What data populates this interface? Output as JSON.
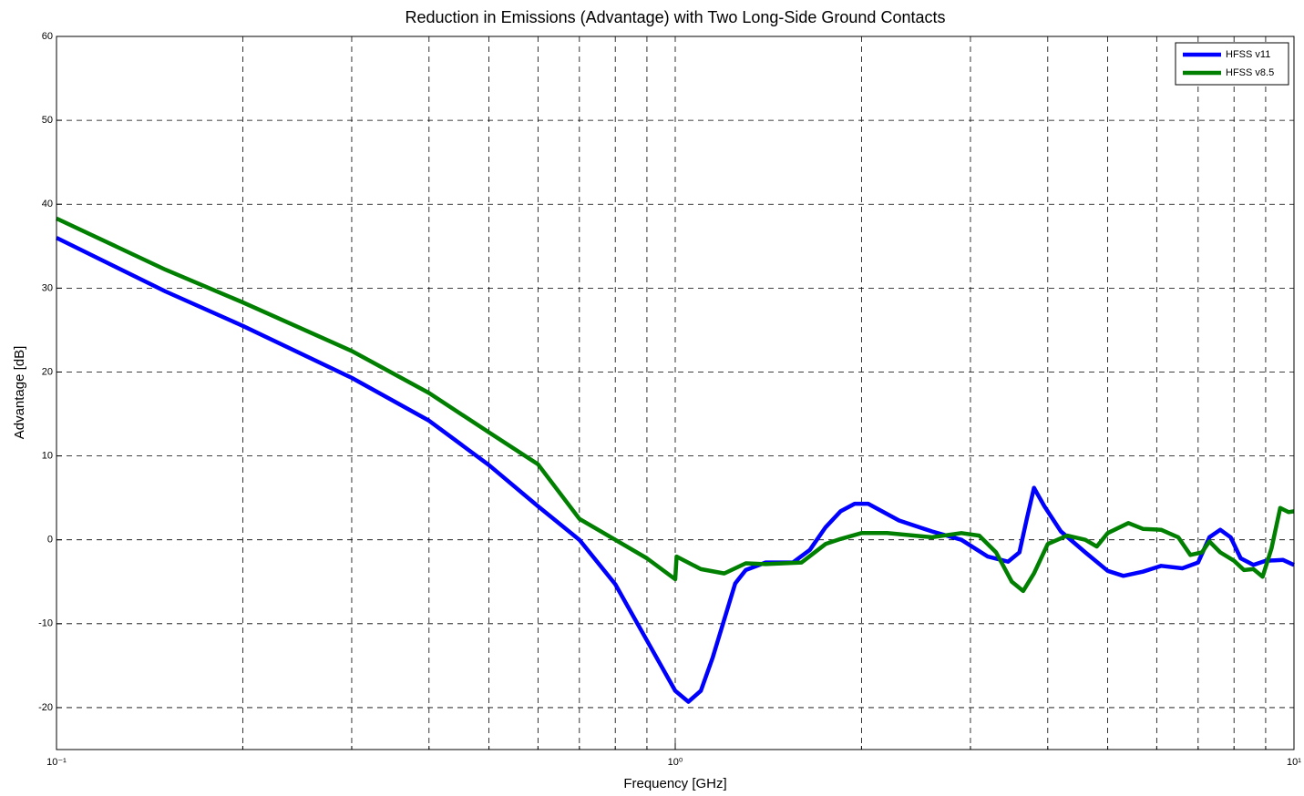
{
  "chart_data": {
    "type": "line",
    "title": "Reduction in Emissions (Advantage) with Two Long-Side Ground Contacts",
    "xlabel": "Frequency [GHz]",
    "ylabel": "Advantage [dB]",
    "xscale": "log",
    "grid": true,
    "legend": "upper right",
    "xlim": [
      0.1,
      10
    ],
    "xticks": [
      {
        "value": 0.1,
        "label": "10⁻¹"
      },
      {
        "value": 1,
        "label": "10⁰"
      },
      {
        "value": 10,
        "label": "10¹"
      }
    ],
    "xminorticks": [
      0.2,
      0.3,
      0.4,
      0.5,
      0.6,
      0.7,
      0.8,
      0.9,
      2,
      3,
      4,
      5,
      6,
      7,
      8,
      9
    ],
    "ylim": [
      -25,
      60
    ],
    "yticks": [
      -20,
      -10,
      0,
      10,
      20,
      30,
      40,
      50,
      60
    ],
    "series": [
      {
        "name": "HFSS v11",
        "color": "#0000ff",
        "x": [
          0.1,
          0.15,
          0.2,
          0.3,
          0.4,
          0.5,
          0.6,
          0.7,
          0.8,
          0.9,
          1.0,
          1.05,
          1.1,
          1.15,
          1.25,
          1.3,
          1.4,
          1.55,
          1.65,
          1.75,
          1.85,
          1.95,
          2.05,
          2.3,
          2.6,
          2.9,
          3.2,
          3.45,
          3.6,
          3.7,
          3.8,
          3.95,
          4.2,
          4.6,
          5.0,
          5.3,
          5.7,
          6.1,
          6.6,
          7.0,
          7.3,
          7.6,
          7.9,
          8.2,
          8.6,
          9.0,
          9.6,
          10
        ],
        "values": [
          36,
          29.6,
          25.5,
          19.3,
          14.2,
          8.9,
          4,
          0,
          -5.3,
          -12,
          -18,
          -19.3,
          -18,
          -14,
          -5.2,
          -3.6,
          -2.7,
          -2.7,
          -1.2,
          1.5,
          3.4,
          4.3,
          4.3,
          2.3,
          1,
          0,
          -2,
          -2.6,
          -1.5,
          2.5,
          6.2,
          4,
          1,
          -1.5,
          -3.7,
          -4.3,
          -3.8,
          -3.1,
          -3.4,
          -2.7,
          0.3,
          1.2,
          0.3,
          -2.2,
          -3,
          -2.5,
          -2.4,
          -3
        ]
      },
      {
        "name": "HFSS v8.5",
        "color": "#007f00",
        "x": [
          0.1,
          0.15,
          0.2,
          0.3,
          0.4,
          0.5,
          0.6,
          0.7,
          0.8,
          0.9,
          1.0,
          1.005,
          1.1,
          1.2,
          1.3,
          1.4,
          1.6,
          1.75,
          1.85,
          2.0,
          2.2,
          2.6,
          2.9,
          3.1,
          3.3,
          3.5,
          3.65,
          3.8,
          4.0,
          4.3,
          4.6,
          4.8,
          5.0,
          5.4,
          5.7,
          6.1,
          6.5,
          6.8,
          7.1,
          7.3,
          7.6,
          8.0,
          8.3,
          8.6,
          8.9,
          9.2,
          9.5,
          9.8,
          10
        ],
        "values": [
          38.3,
          32.2,
          28.3,
          22.5,
          17.5,
          12.8,
          9,
          2.5,
          0,
          -2.2,
          -4.7,
          -2,
          -3.5,
          -4,
          -2.8,
          -2.9,
          -2.7,
          -0.5,
          0.1,
          0.8,
          0.8,
          0.3,
          0.8,
          0.5,
          -1.5,
          -5,
          -6.1,
          -4,
          -0.5,
          0.5,
          0,
          -0.8,
          0.8,
          2,
          1.3,
          1.2,
          0.3,
          -1.8,
          -1.5,
          -0.2,
          -1.5,
          -2.5,
          -3.6,
          -3.5,
          -4.4,
          -1,
          3.8,
          3.3,
          3.4
        ]
      }
    ]
  }
}
